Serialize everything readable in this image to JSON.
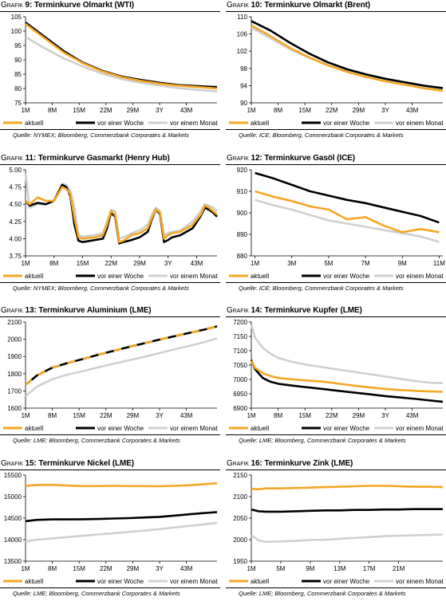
{
  "series_names": [
    "aktuell",
    "vor einer Woche",
    "vor einem Monat"
  ],
  "colors": {
    "aktuell": "#f5a623",
    "vor einer Woche": "#000000",
    "vor einem Monat": "#cfcfcf"
  },
  "title_prefix": "Grafik",
  "chart_data": [
    {
      "number": "9:",
      "title": "Terminkurve Olmarkt (WTI)",
      "type": "line",
      "source": "Quelle: NYMEX; Bloomberg, Commerzbank Corporates & Markets",
      "x": [
        1,
        6,
        11,
        16,
        21,
        26,
        31,
        36,
        41,
        46,
        51
      ],
      "xticks": [
        1,
        8,
        15,
        22,
        29,
        36,
        43
      ],
      "xtick_labels": [
        "1M",
        "8M",
        "15M",
        "22M",
        "29M",
        "3Y",
        "43M"
      ],
      "xlim": [
        1,
        51
      ],
      "ylim": [
        75,
        105
      ],
      "yticks": [
        75,
        80,
        85,
        90,
        95,
        100,
        105
      ],
      "yformat": "int",
      "series": [
        {
          "name": "aktuell",
          "values": [
            102.5,
            97.5,
            92.5,
            88.8,
            86.0,
            84.0,
            82.7,
            81.7,
            81.0,
            80.5,
            80.0
          ]
        },
        {
          "name": "vor einer Woche",
          "values": [
            103.0,
            98.0,
            93.0,
            89.0,
            86.2,
            84.2,
            83.0,
            82.0,
            81.2,
            80.8,
            80.5
          ]
        },
        {
          "name": "vor einem Monat",
          "values": [
            98.0,
            94.0,
            90.5,
            87.6,
            85.2,
            83.3,
            82.0,
            81.0,
            80.1,
            79.5,
            79.0
          ]
        }
      ]
    },
    {
      "number": "10:",
      "title": "Terminkurve Olmarkt (Brent)",
      "type": "line",
      "source": "Quelle: ICE; Bloomberg, Commerzbank Corporates & Markets",
      "x": [
        1,
        6,
        11,
        16,
        21,
        26,
        31,
        36,
        41,
        46,
        51
      ],
      "xticks": [
        1,
        8,
        15,
        22,
        29,
        36,
        43
      ],
      "xtick_labels": [
        "1M",
        "8M",
        "15M",
        "22M",
        "29M",
        "3Y",
        "43M"
      ],
      "xlim": [
        1,
        51
      ],
      "ylim": [
        90,
        110
      ],
      "yticks": [
        90,
        94,
        98,
        102,
        106,
        110
      ],
      "yformat": "int",
      "series": [
        {
          "name": "aktuell",
          "values": [
            108.0,
            105.5,
            102.8,
            100.6,
            98.7,
            97.2,
            96.0,
            95.0,
            94.2,
            93.4,
            92.8
          ]
        },
        {
          "name": "vor einer Woche",
          "values": [
            109.0,
            106.8,
            104.0,
            101.5,
            99.4,
            97.8,
            96.6,
            95.6,
            94.8,
            94.0,
            93.4
          ]
        },
        {
          "name": "vor einem Monat",
          "values": [
            107.5,
            105.0,
            102.5,
            100.5,
            98.8,
            97.4,
            96.3,
            95.4,
            94.6,
            93.9,
            93.3
          ]
        }
      ]
    },
    {
      "number": "11:",
      "title": "Terminkurve Gasmarkt (Henry Hub)",
      "type": "line",
      "source": "Quelle: NYMEX; Bloomberg, Commerzbank Corporates & Markets",
      "x": [
        1,
        2,
        4,
        6,
        8,
        10,
        11,
        12,
        13,
        14,
        15,
        18,
        20,
        21,
        22,
        23,
        24,
        25,
        27,
        29,
        31,
        32,
        33,
        34,
        35,
        36,
        37,
        39,
        42,
        44,
        45,
        46,
        47,
        48
      ],
      "xticks": [
        1,
        8,
        15,
        22,
        29,
        36,
        43
      ],
      "xtick_labels": [
        "1M",
        "8M",
        "15M",
        "22M",
        "29M",
        "3Y",
        "43M"
      ],
      "xlim": [
        1,
        48
      ],
      "ylim": [
        3.75,
        5.0
      ],
      "yticks": [
        3.75,
        4.0,
        4.25,
        4.5,
        4.75,
        5.0
      ],
      "yformat": "2dp",
      "series": [
        {
          "name": "aktuell",
          "values": [
            4.55,
            4.5,
            4.6,
            4.55,
            4.55,
            4.75,
            4.72,
            4.65,
            4.3,
            4.02,
            4.0,
            4.02,
            4.05,
            4.2,
            4.4,
            4.35,
            3.95,
            3.97,
            4.05,
            4.08,
            4.15,
            4.3,
            4.42,
            4.38,
            4.0,
            4.05,
            4.08,
            4.1,
            4.2,
            4.35,
            4.48,
            4.45,
            4.4,
            4.35
          ]
        },
        {
          "name": "vor einer Woche",
          "values": [
            4.55,
            4.48,
            4.52,
            4.5,
            4.55,
            4.78,
            4.75,
            4.62,
            4.2,
            3.97,
            3.95,
            3.98,
            4.0,
            4.15,
            4.38,
            4.32,
            3.93,
            3.95,
            3.98,
            4.02,
            4.1,
            4.28,
            4.42,
            4.36,
            3.95,
            3.98,
            4.02,
            4.05,
            4.15,
            4.33,
            4.45,
            4.42,
            4.38,
            4.32
          ]
        },
        {
          "name": "vor einem Monat",
          "values": [
            4.95,
            4.45,
            4.5,
            4.5,
            4.55,
            4.8,
            4.78,
            4.7,
            4.45,
            4.05,
            4.03,
            4.05,
            4.08,
            4.25,
            4.42,
            4.4,
            4.0,
            4.02,
            4.08,
            4.12,
            4.2,
            4.35,
            4.45,
            4.4,
            4.05,
            4.08,
            4.1,
            4.12,
            4.25,
            4.4,
            4.5,
            4.48,
            4.45,
            4.4
          ]
        }
      ]
    },
    {
      "number": "12:",
      "title": "Terminkurve Gasöl (ICE)",
      "type": "line",
      "source": "Quelle: ICE; Bloomberg, Commerzbank Corporates & Markets",
      "x": [
        1,
        2,
        3,
        4,
        5,
        6,
        7,
        8,
        9,
        10,
        11
      ],
      "xticks": [
        1,
        3,
        5,
        7,
        9,
        11
      ],
      "xtick_labels": [
        "1M",
        "3M",
        "5M",
        "7M",
        "9M",
        "11M"
      ],
      "xlim": [
        0.8,
        11.2
      ],
      "ylim": [
        880,
        920
      ],
      "yticks": [
        880,
        890,
        900,
        910,
        920
      ],
      "yformat": "int",
      "series": [
        {
          "name": "aktuell",
          "values": [
            910.0,
            907.5,
            905.5,
            903.0,
            901.5,
            897.0,
            898.0,
            894.0,
            891.0,
            892.5,
            891.0
          ]
        },
        {
          "name": "vor einer Woche",
          "values": [
            918.5,
            916.0,
            913.0,
            910.0,
            908.0,
            906.0,
            904.5,
            902.5,
            900.5,
            898.5,
            895.5
          ]
        },
        {
          "name": "vor einem Monat",
          "values": [
            906.0,
            903.5,
            901.5,
            899.0,
            896.5,
            895.0,
            893.5,
            892.0,
            890.5,
            889.0,
            886.5
          ]
        }
      ]
    },
    {
      "number": "13:",
      "title": "Terminkurve Aluminium (LME)",
      "type": "line",
      "source": "Quelle: LME; Bloomberg, Commerzbank Corporates & Markets",
      "x": [
        1,
        4,
        8,
        12,
        16,
        20,
        24,
        28,
        32,
        36,
        40,
        44,
        48,
        51
      ],
      "xticks": [
        1,
        8,
        15,
        22,
        29,
        36,
        43
      ],
      "xtick_labels": [
        "1M",
        "8M",
        "15M",
        "22M",
        "29M",
        "3Y",
        "43M"
      ],
      "xlim": [
        1,
        51
      ],
      "ylim": [
        1600,
        2100
      ],
      "yticks": [
        1600,
        1700,
        1800,
        1900,
        2000,
        2100
      ],
      "yformat": "int",
      "series": [
        {
          "name": "aktuell",
          "values": [
            1735,
            1790,
            1835,
            1862,
            1885,
            1910,
            1933,
            1955,
            1977,
            1998,
            2018,
            2038,
            2058,
            2075
          ]
        },
        {
          "name": "vor einer Woche",
          "values": [
            1735,
            1790,
            1835,
            1862,
            1885,
            1910,
            1933,
            1955,
            1977,
            1998,
            2018,
            2038,
            2058,
            2075
          ]
        },
        {
          "name": "vor einem Monat",
          "values": [
            1670,
            1725,
            1768,
            1795,
            1815,
            1837,
            1858,
            1878,
            1898,
            1920,
            1942,
            1963,
            1985,
            2005
          ]
        }
      ]
    },
    {
      "number": "14:",
      "title": "Terminkurve Kupfer (LME)",
      "type": "line",
      "source": "Quelle: LME; Bloomberg, Commerzbank Corporates & Markets",
      "x": [
        1,
        2,
        4,
        6,
        8,
        12,
        16,
        20,
        24,
        28,
        32,
        36,
        40,
        44,
        48,
        51
      ],
      "xticks": [
        1,
        8,
        15,
        22,
        29,
        36,
        43
      ],
      "xtick_labels": [
        "1M",
        "8M",
        "15M",
        "22M",
        "29M",
        "3Y",
        "43M"
      ],
      "xlim": [
        1,
        51
      ],
      "ylim": [
        6900,
        7200
      ],
      "yticks": [
        6900,
        6950,
        7000,
        7050,
        7100,
        7150,
        7200
      ],
      "yformat": "int",
      "series": [
        {
          "name": "aktuell",
          "values": [
            7065,
            7040,
            7022,
            7012,
            7005,
            7000,
            6996,
            6992,
            6985,
            6978,
            6972,
            6967,
            6963,
            6960,
            6958,
            6957
          ]
        },
        {
          "name": "vor einer Woche",
          "values": [
            7068,
            7035,
            7005,
            6992,
            6985,
            6978,
            6972,
            6966,
            6960,
            6954,
            6948,
            6942,
            6937,
            6932,
            6926,
            6922
          ]
        },
        {
          "name": "vor einem Monat",
          "values": [
            7190,
            7145,
            7110,
            7090,
            7075,
            7060,
            7050,
            7042,
            7034,
            7026,
            7018,
            7010,
            7002,
            6994,
            6988,
            6987
          ]
        }
      ]
    },
    {
      "number": "15:",
      "title": "Terminkurve Nickel (LME)",
      "type": "line",
      "source": "Quelle: LME; Bloomberg, Commerzbank Corporates & Markets",
      "x": [
        1,
        4,
        8,
        12,
        16,
        20,
        24,
        28,
        32,
        36,
        40,
        44,
        48,
        51
      ],
      "xticks": [
        1,
        8,
        15,
        22,
        29,
        36,
        43
      ],
      "xtick_labels": [
        "1M",
        "8M",
        "15M",
        "22M",
        "29M",
        "3Y",
        "43M"
      ],
      "xlim": [
        1,
        51
      ],
      "ylim": [
        13500,
        15500
      ],
      "yticks": [
        13500,
        14000,
        14500,
        15000,
        15500
      ],
      "yformat": "int",
      "series": [
        {
          "name": "aktuell",
          "values": [
            15250,
            15270,
            15275,
            15255,
            15245,
            15245,
            15250,
            15245,
            15245,
            15240,
            15250,
            15265,
            15290,
            15310
          ]
        },
        {
          "name": "vor einer Woche",
          "values": [
            14430,
            14460,
            14470,
            14470,
            14475,
            14480,
            14490,
            14500,
            14515,
            14530,
            14560,
            14590,
            14620,
            14640
          ]
        },
        {
          "name": "vor einem Monat",
          "values": [
            13960,
            14000,
            14030,
            14060,
            14090,
            14120,
            14150,
            14180,
            14210,
            14245,
            14285,
            14320,
            14360,
            14390
          ]
        }
      ]
    },
    {
      "number": "16:",
      "title": "Terminkurve Zink (LME)",
      "type": "line",
      "source": "Quelle: LME; Bloomberg, Commerzbank Corporates & Markets",
      "x": [
        1,
        2,
        3,
        5,
        7,
        9,
        11,
        13,
        15,
        17,
        19,
        21,
        23,
        25,
        27
      ],
      "xticks": [
        1,
        5,
        9,
        13,
        17,
        21
      ],
      "xtick_labels": [
        "1M",
        "5M",
        "9M",
        "13M",
        "17M",
        "21M"
      ],
      "xlim": [
        1,
        27
      ],
      "ylim": [
        1950,
        2150
      ],
      "yticks": [
        1950,
        2000,
        2050,
        2100,
        2150
      ],
      "yformat": "int",
      "series": [
        {
          "name": "aktuell",
          "values": [
            2118,
            2117,
            2119,
            2119,
            2120,
            2121,
            2122,
            2123,
            2124,
            2125,
            2125,
            2124,
            2123,
            2123,
            2122
          ]
        },
        {
          "name": "vor einer Woche",
          "values": [
            2070,
            2066,
            2065,
            2065,
            2066,
            2067,
            2068,
            2068,
            2069,
            2069,
            2070,
            2070,
            2071,
            2071,
            2071
          ]
        },
        {
          "name": "vor einem Monat",
          "values": [
            2010,
            1998,
            1995,
            1996,
            1997,
            1999,
            2000,
            2002,
            2004,
            2006,
            2008,
            2009,
            2010,
            2011,
            2012
          ]
        }
      ]
    }
  ]
}
